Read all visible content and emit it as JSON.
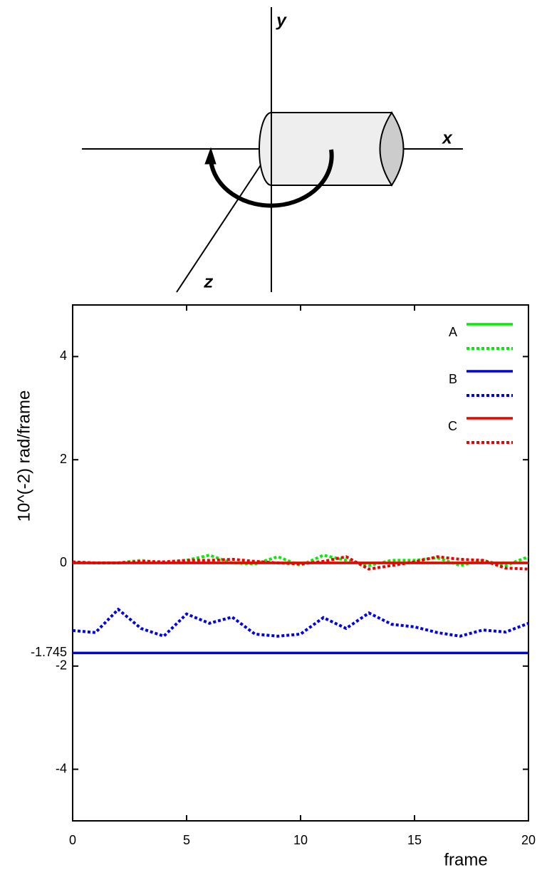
{
  "diagram": {
    "axis_labels": [
      "y",
      "x",
      "z"
    ]
  },
  "chart_data": {
    "type": "line",
    "x_label": "frame",
    "y_label": "10^(-2) rad/frame",
    "x": [
      0,
      1,
      2,
      3,
      4,
      5,
      6,
      7,
      8,
      9,
      10,
      11,
      12,
      13,
      14,
      15,
      16,
      17,
      18,
      19,
      20
    ],
    "xlim": [
      0,
      20
    ],
    "xticks": [
      0,
      5,
      10,
      15,
      20
    ],
    "ylim": [
      -5,
      5
    ],
    "yticks": [
      4,
      2,
      0,
      -1.745,
      -2,
      -4
    ],
    "legend": "upper right",
    "series": [
      {
        "name": "A",
        "color": "#00ee00",
        "lines": [
          {
            "style": "solid",
            "values": [
              0,
              0,
              0,
              0,
              0,
              0,
              0,
              0,
              0,
              0,
              0,
              0,
              0,
              0,
              0,
              0,
              0,
              0,
              0,
              0,
              0
            ]
          },
          {
            "style": "dotted",
            "values": [
              0,
              0,
              0,
              0.05,
              0,
              0.05,
              0.15,
              0,
              -0.02,
              0.12,
              -0.05,
              0.15,
              0.05,
              -0.05,
              0.05,
              0.05,
              0.1,
              -0.05,
              0.05,
              -0.05,
              0.12
            ]
          }
        ]
      },
      {
        "name": "B",
        "color": "#0000ee",
        "lines": [
          {
            "style": "solid",
            "values": [
              -1.745,
              -1.745,
              -1.745,
              -1.745,
              -1.745,
              -1.745,
              -1.745,
              -1.745,
              -1.745,
              -1.745,
              -1.745,
              -1.745,
              -1.745,
              -1.745,
              -1.745,
              -1.745,
              -1.745,
              -1.745,
              -1.745,
              -1.745,
              -1.745
            ]
          },
          {
            "style": "dotted",
            "values": [
              -1.31,
              -1.35,
              -0.9,
              -1.27,
              -1.42,
              -0.99,
              -1.17,
              -1.05,
              -1.38,
              -1.42,
              -1.38,
              -1.06,
              -1.27,
              -0.97,
              -1.19,
              -1.24,
              -1.35,
              -1.42,
              -1.3,
              -1.34,
              -1.17
            ]
          }
        ]
      },
      {
        "name": "C",
        "color": "#ee0000",
        "lines": [
          {
            "style": "solid",
            "values": [
              0,
              0,
              0,
              0,
              0,
              0,
              0,
              0,
              0,
              0,
              0,
              0,
              0,
              0,
              0,
              0,
              0,
              0,
              0,
              0,
              0
            ]
          },
          {
            "style": "dotted",
            "values": [
              0.02,
              0,
              0,
              0.03,
              0.02,
              0.05,
              0.05,
              0.07,
              0.03,
              0,
              -0.02,
              0.03,
              0.12,
              -0.12,
              -0.05,
              0.02,
              0.12,
              0.07,
              0.05,
              -0.1,
              -0.12
            ]
          }
        ]
      }
    ]
  }
}
